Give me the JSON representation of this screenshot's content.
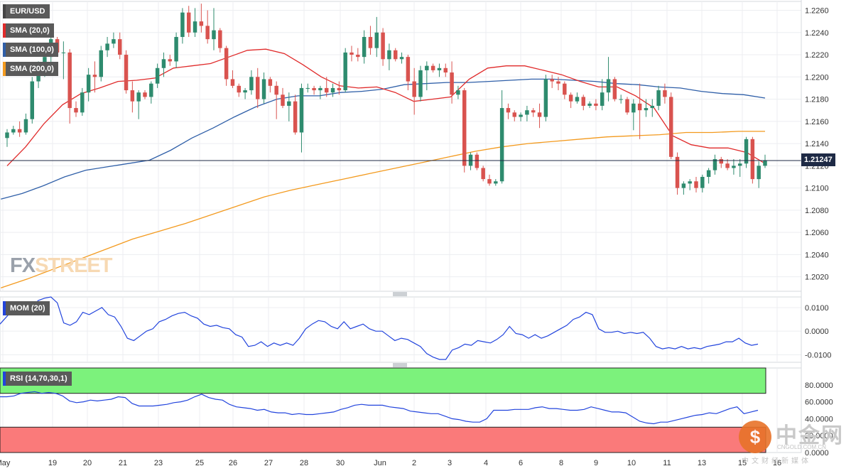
{
  "chart_data": {
    "type": "candlestick",
    "symbol": "EUR/USD",
    "last_price": "1.21247",
    "indicators": {
      "sma20": "SMA (20,0)",
      "sma100": "SMA (100,0)",
      "sma200": "SMA (200,0)",
      "mom": "MOM (20)",
      "rsi": "RSI (14,70,30,1)"
    },
    "colors": {
      "up": "#2e8b6e",
      "down": "#d9534f",
      "sma20": "#e02a2a",
      "sma100": "#2f5fa8",
      "sma200": "#f39a1e",
      "mom": "#2244dd",
      "rsi": "#2244dd",
      "overbought": "#7cf27c",
      "oversold": "#fa7a7a",
      "price_line": "#1e2a45"
    },
    "price_axis": {
      "ylim": [
        1.2007,
        1.2268
      ],
      "ticks": [
        "1.2260",
        "1.2240",
        "1.2220",
        "1.2200",
        "1.2180",
        "1.2160",
        "1.2140",
        "1.2120",
        "1.2100",
        "1.2080",
        "1.2060",
        "1.2040",
        "1.2020"
      ]
    },
    "mom_axis": {
      "ylim": [
        -0.0132,
        0.0145
      ],
      "ticks": [
        "0.0100",
        "0.0000",
        "-0.0100"
      ]
    },
    "rsi_axis": {
      "ylim": [
        0,
        100
      ],
      "ticks": [
        "80.0000",
        "60.0000",
        "40.0000",
        "20.0000",
        "0.0000"
      ],
      "upper": 70,
      "lower": 30
    },
    "x_labels": [
      "May",
      "19",
      "20",
      "21",
      "23",
      "25",
      "26",
      "27",
      "28",
      "30",
      "Jun",
      "2",
      "3",
      "4",
      "6",
      "8",
      "9",
      "10",
      "11",
      "13",
      "15",
      "16"
    ],
    "candles": [
      [
        1.2145,
        1.2153,
        1.2137,
        1.215
      ],
      [
        1.215,
        1.2156,
        1.2148,
        1.2153
      ],
      [
        1.2153,
        1.216,
        1.2146,
        1.215
      ],
      [
        1.215,
        1.2167,
        1.2148,
        1.2162
      ],
      [
        1.2162,
        1.22,
        1.2158,
        1.2196
      ],
      [
        1.2196,
        1.2214,
        1.219,
        1.2208
      ],
      [
        1.2208,
        1.2222,
        1.22,
        1.2218
      ],
      [
        1.2218,
        1.224,
        1.2212,
        1.2234
      ],
      [
        1.2234,
        1.2236,
        1.2218,
        1.2222
      ],
      [
        1.2222,
        1.2232,
        1.2198,
        1.2222
      ],
      [
        1.2222,
        1.2225,
        1.2158,
        1.2172
      ],
      [
        1.2172,
        1.2178,
        1.2164,
        1.2168
      ],
      [
        1.2168,
        1.219,
        1.2165,
        1.2186
      ],
      [
        1.2186,
        1.2208,
        1.2178,
        1.2202
      ],
      [
        1.2202,
        1.2214,
        1.2186,
        1.22
      ],
      [
        1.22,
        1.2228,
        1.2196,
        1.2224
      ],
      [
        1.2224,
        1.2236,
        1.2218,
        1.223
      ],
      [
        1.223,
        1.224,
        1.2226,
        1.2234
      ],
      [
        1.2234,
        1.224,
        1.2216,
        1.222
      ],
      [
        1.222,
        1.2224,
        1.2185,
        1.2188
      ],
      [
        1.2188,
        1.2196,
        1.2168,
        1.2178
      ],
      [
        1.2178,
        1.2188,
        1.2162,
        1.2186
      ],
      [
        1.2186,
        1.2188,
        1.218,
        1.2182
      ],
      [
        1.2182,
        1.2196,
        1.2176,
        1.2194
      ],
      [
        1.2194,
        1.2212,
        1.219,
        1.2208
      ],
      [
        1.2208,
        1.2222,
        1.22,
        1.2216
      ],
      [
        1.2216,
        1.222,
        1.221,
        1.2214
      ],
      [
        1.2214,
        1.224,
        1.2208,
        1.2236
      ],
      [
        1.2236,
        1.2262,
        1.223,
        1.2258
      ],
      [
        1.2258,
        1.2264,
        1.2236,
        1.224
      ],
      [
        1.224,
        1.2262,
        1.2236,
        1.225
      ],
      [
        1.225,
        1.2266,
        1.224,
        1.2246
      ],
      [
        1.2246,
        1.226,
        1.223,
        1.2234
      ],
      [
        1.2234,
        1.2262,
        1.2224,
        1.2242
      ],
      [
        1.2242,
        1.2244,
        1.2222,
        1.2226
      ],
      [
        1.2226,
        1.2228,
        1.2192,
        1.2198
      ],
      [
        1.2198,
        1.2206,
        1.219,
        1.2192
      ],
      [
        1.2192,
        1.2194,
        1.2182,
        1.2186
      ],
      [
        1.2186,
        1.219,
        1.218,
        1.2188
      ],
      [
        1.2188,
        1.2206,
        1.2184,
        1.22
      ],
      [
        1.22,
        1.2208,
        1.2172,
        1.218
      ],
      [
        1.218,
        1.2204,
        1.2176,
        1.2198
      ],
      [
        1.2198,
        1.22,
        1.2186,
        1.2192
      ],
      [
        1.2192,
        1.2196,
        1.2162,
        1.2184
      ],
      [
        1.2184,
        1.219,
        1.2172,
        1.2174
      ],
      [
        1.2174,
        1.2186,
        1.216,
        1.2178
      ],
      [
        1.2178,
        1.2184,
        1.2148,
        1.215
      ],
      [
        1.215,
        1.2194,
        1.2132,
        1.219
      ],
      [
        1.219,
        1.2194,
        1.2186,
        1.219
      ],
      [
        1.219,
        1.2192,
        1.2184,
        1.2188
      ],
      [
        1.2188,
        1.2192,
        1.218,
        1.219
      ],
      [
        1.219,
        1.22,
        1.2182,
        1.2186
      ],
      [
        1.2186,
        1.2194,
        1.2182,
        1.219
      ],
      [
        1.219,
        1.2196,
        1.2184,
        1.2188
      ],
      [
        1.2188,
        1.2226,
        1.2186,
        1.2222
      ],
      [
        1.2222,
        1.2228,
        1.2214,
        1.222
      ],
      [
        1.222,
        1.2226,
        1.2214,
        1.2218
      ],
      [
        1.2218,
        1.2242,
        1.2212,
        1.2236
      ],
      [
        1.2236,
        1.2246,
        1.222,
        1.2226
      ],
      [
        1.2226,
        1.2254,
        1.2218,
        1.224
      ],
      [
        1.224,
        1.2244,
        1.221,
        1.2216
      ],
      [
        1.2216,
        1.223,
        1.2206,
        1.2224
      ],
      [
        1.2224,
        1.2226,
        1.2214,
        1.2216
      ],
      [
        1.2216,
        1.2222,
        1.2212,
        1.2218
      ],
      [
        1.2218,
        1.222,
        1.2188,
        1.2196
      ],
      [
        1.2196,
        1.2208,
        1.2166,
        1.2182
      ],
      [
        1.2182,
        1.221,
        1.2178,
        1.2206
      ],
      [
        1.2206,
        1.2214,
        1.2188,
        1.221
      ],
      [
        1.221,
        1.2212,
        1.2204,
        1.2206
      ],
      [
        1.2206,
        1.2212,
        1.22,
        1.2208
      ],
      [
        1.2208,
        1.2212,
        1.22,
        1.2204
      ],
      [
        1.2204,
        1.2214,
        1.2176,
        1.2184
      ],
      [
        1.2184,
        1.2192,
        1.218,
        1.2188
      ],
      [
        1.2188,
        1.219,
        1.2114,
        1.212
      ],
      [
        1.212,
        1.2132,
        1.2116,
        1.213
      ],
      [
        1.213,
        1.2132,
        1.2116,
        1.2118
      ],
      [
        1.2118,
        1.212,
        1.2106,
        1.2108
      ],
      [
        1.2108,
        1.2112,
        1.2102,
        1.2104
      ],
      [
        1.2104,
        1.2108,
        1.2102,
        1.2106
      ],
      [
        1.2106,
        1.2188,
        1.2104,
        1.2172
      ],
      [
        1.2172,
        1.2176,
        1.2162,
        1.2168
      ],
      [
        1.2168,
        1.217,
        1.216,
        1.2164
      ],
      [
        1.2164,
        1.2168,
        1.216,
        1.2166
      ],
      [
        1.2166,
        1.2174,
        1.216,
        1.217
      ],
      [
        1.217,
        1.2172,
        1.2164,
        1.2168
      ],
      [
        1.2168,
        1.2176,
        1.2154,
        1.2164
      ],
      [
        1.2164,
        1.2202,
        1.216,
        1.2198
      ],
      [
        1.2198,
        1.2202,
        1.219,
        1.2196
      ],
      [
        1.2196,
        1.22,
        1.2188,
        1.2194
      ],
      [
        1.2194,
        1.2196,
        1.218,
        1.2184
      ],
      [
        1.2184,
        1.2186,
        1.2172,
        1.2178
      ],
      [
        1.2178,
        1.2186,
        1.2176,
        1.2182
      ],
      [
        1.2182,
        1.2184,
        1.217,
        1.2174
      ],
      [
        1.2174,
        1.2178,
        1.2172,
        1.2176
      ],
      [
        1.2176,
        1.218,
        1.217,
        1.2174
      ],
      [
        1.2174,
        1.2198,
        1.217,
        1.2186
      ],
      [
        1.2186,
        1.2218,
        1.2178,
        1.2198
      ],
      [
        1.2198,
        1.22,
        1.2178,
        1.218
      ],
      [
        1.218,
        1.2184,
        1.2176,
        1.218
      ],
      [
        1.218,
        1.2182,
        1.2166,
        1.2168
      ],
      [
        1.2168,
        1.218,
        1.2152,
        1.2176
      ],
      [
        1.2176,
        1.2194,
        1.2144,
        1.217
      ],
      [
        1.217,
        1.218,
        1.2164,
        1.2172
      ],
      [
        1.2172,
        1.218,
        1.2164,
        1.2174
      ],
      [
        1.2174,
        1.2192,
        1.217,
        1.2188
      ],
      [
        1.2188,
        1.2194,
        1.2176,
        1.2182
      ],
      [
        1.2182,
        1.2186,
        1.2126,
        1.2128
      ],
      [
        1.2128,
        1.2132,
        1.2094,
        1.21
      ],
      [
        1.21,
        1.2106,
        1.2094,
        1.2104
      ],
      [
        1.2104,
        1.2108,
        1.2098,
        1.2106
      ],
      [
        1.2106,
        1.211,
        1.2096,
        1.21
      ],
      [
        1.21,
        1.2112,
        1.2096,
        1.211
      ],
      [
        1.211,
        1.2118,
        1.2104,
        1.2116
      ],
      [
        1.2116,
        1.213,
        1.2112,
        1.2126
      ],
      [
        1.2126,
        1.2128,
        1.2118,
        1.2122
      ],
      [
        1.2122,
        1.2126,
        1.2116,
        1.2118
      ],
      [
        1.2118,
        1.2126,
        1.2112,
        1.212
      ],
      [
        1.212,
        1.2126,
        1.211,
        1.2122
      ],
      [
        1.2122,
        1.2146,
        1.2118,
        1.2144
      ],
      [
        1.2144,
        1.2146,
        1.2104,
        1.2108
      ],
      [
        1.2108,
        1.2124,
        1.21,
        1.212
      ],
      [
        1.212,
        1.213,
        1.2118,
        1.2125
      ]
    ],
    "sma20": [
      1.212,
      1.2137,
      1.2158,
      1.2175,
      1.2185,
      1.219,
      1.2196,
      1.2197,
      1.2199,
      1.2208,
      1.221,
      1.2212,
      1.2218,
      1.2224,
      1.2225,
      1.2221,
      1.2211,
      1.22,
      1.2192,
      1.219,
      1.2191,
      1.2186,
      1.2178,
      1.218,
      1.2182,
      1.2198,
      1.2208,
      1.221,
      1.221,
      1.2206,
      1.2202,
      1.2196,
      1.2191,
      1.2191,
      1.2183,
      1.2172,
      1.2147,
      1.2139,
      1.2136,
      1.2136,
      1.2132,
      1.2122
    ],
    "sma100": [
      1.209,
      1.2095,
      1.2102,
      1.211,
      1.2116,
      1.2119,
      1.2122,
      1.2125,
      1.2134,
      1.2145,
      1.2154,
      1.2164,
      1.2173,
      1.218,
      1.2183,
      1.2183,
      1.2186,
      1.2187,
      1.2189,
      1.2193,
      1.2194,
      1.2195,
      1.2195,
      1.2196,
      1.2197,
      1.2198,
      1.2198,
      1.2197,
      1.2196,
      1.2194,
      1.2193,
      1.2191,
      1.219,
      1.2187,
      1.2185,
      1.2184,
      1.2181
    ],
    "sma200": [
      1.201,
      1.2018,
      1.2027,
      1.2036,
      1.2045,
      1.2054,
      1.2061,
      1.2068,
      1.2076,
      1.2084,
      1.2092,
      1.2098,
      1.2103,
      1.2108,
      1.2113,
      1.2118,
      1.2123,
      1.2128,
      1.2133,
      1.2137,
      1.214,
      1.2142,
      1.2144,
      1.2146,
      1.2147,
      1.2148,
      1.215,
      1.215,
      1.2151,
      1.2151
    ],
    "mom": [
      0.003,
      0.006,
      0.009,
      0.0085,
      0.007,
      0.01,
      0.013,
      0.014,
      0.0145,
      0.012,
      0.0035,
      0.0025,
      0.004,
      0.008,
      0.007,
      0.0085,
      0.01,
      0.007,
      0.006,
      0.002,
      -0.003,
      -0.004,
      -0.002,
      0.0,
      0.001,
      0.004,
      0.005,
      0.0065,
      0.0075,
      0.008,
      0.0065,
      0.0055,
      0.003,
      0.002,
      0.0025,
      0.0015,
      0.001,
      -0.0015,
      -0.0025,
      -0.0065,
      -0.006,
      -0.0045,
      -0.0065,
      -0.005,
      -0.006,
      -0.005,
      -0.006,
      -0.003,
      0.001,
      0.003,
      0.0045,
      0.004,
      0.002,
      0.001,
      0.004,
      0.001,
      0.002,
      0.003,
      0.001,
      0.0,
      0.0,
      -0.002,
      -0.004,
      -0.003,
      -0.0035,
      -0.005,
      -0.0065,
      -0.0095,
      -0.011,
      -0.012,
      -0.012,
      -0.008,
      -0.007,
      -0.0055,
      -0.006,
      -0.004,
      -0.0045,
      -0.005,
      -0.0035,
      -0.0015,
      0.002,
      -0.001,
      -0.0015,
      -0.003,
      -0.0015,
      -0.003,
      -0.002,
      -0.0005,
      0.001,
      0.0025,
      0.005,
      0.006,
      0.008,
      0.007,
      0.001,
      -0.0005,
      -0.0005,
      0.0,
      -0.001,
      -0.0005,
      -0.001,
      -0.0005,
      -0.003,
      -0.0065,
      -0.0075,
      -0.007,
      -0.0075,
      -0.0065,
      -0.0075,
      -0.007,
      -0.0075,
      -0.0065,
      -0.006,
      -0.0055,
      -0.0045,
      -0.0045,
      -0.003,
      -0.005,
      -0.006,
      -0.0055
    ],
    "rsi": [
      66,
      66,
      67,
      70,
      71,
      72,
      70,
      71,
      70,
      67,
      61,
      59,
      60,
      62,
      61,
      62,
      63,
      66,
      65,
      58,
      55,
      55,
      55,
      56,
      57,
      59,
      60,
      62,
      66,
      69,
      65,
      63,
      62,
      57,
      54,
      53,
      52,
      50,
      51,
      48,
      47,
      47,
      45,
      46,
      45,
      45,
      46,
      47,
      48,
      51,
      53,
      56,
      57,
      56,
      56,
      56,
      54,
      53,
      52,
      49,
      48,
      47,
      46,
      46,
      43,
      40,
      39,
      37,
      36,
      36,
      40,
      50,
      50,
      50,
      51,
      51,
      51,
      53,
      54,
      52,
      52,
      51,
      50,
      50,
      51,
      54,
      52,
      50,
      48,
      48,
      47,
      42,
      37,
      35,
      34,
      36,
      36,
      38,
      40,
      42,
      44,
      45,
      47,
      46,
      49,
      52,
      54,
      46,
      48,
      50
    ]
  },
  "watermarks": {
    "fxstreet_a": "FX",
    "fxstreet_b": "STREET",
    "cngold_big": "中金网",
    "cngold_url": "CNGOLD.COM.CN",
    "cngold_sub": "中文财经新媒体"
  }
}
